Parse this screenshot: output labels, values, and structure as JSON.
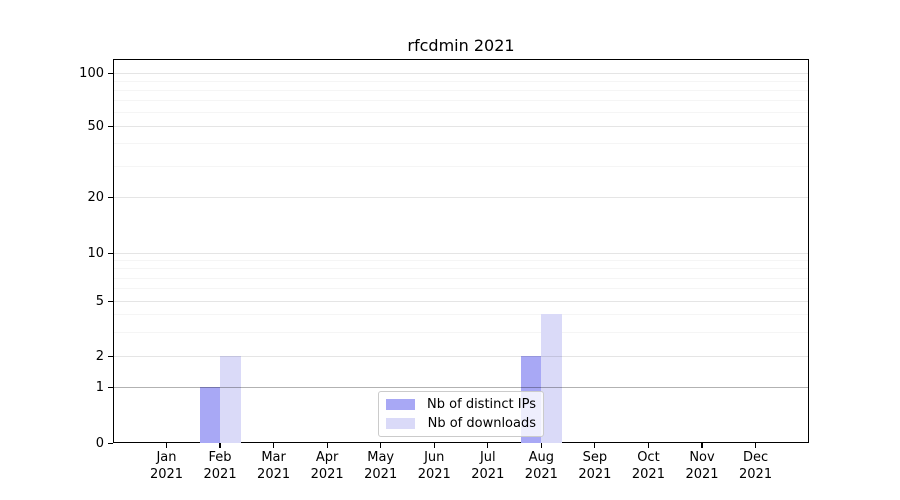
{
  "title": "rfcdmin 2021",
  "chart_data": {
    "type": "bar",
    "categories": [
      "Jan 2021",
      "Feb 2021",
      "Mar 2021",
      "Apr 2021",
      "May 2021",
      "Jun 2021",
      "Jul 2021",
      "Aug 2021",
      "Sep 2021",
      "Oct 2021",
      "Nov 2021",
      "Dec 2021"
    ],
    "series": [
      {
        "name": "Nb of distinct IPs",
        "color": "#a8a8f5",
        "values": [
          0,
          1,
          0,
          0,
          0,
          0,
          0,
          2,
          0,
          0,
          0,
          0
        ]
      },
      {
        "name": "Nb of downloads",
        "color": "#dadaf8",
        "values": [
          0,
          2,
          0,
          0,
          0,
          0,
          0,
          4,
          0,
          0,
          0,
          0
        ]
      }
    ],
    "title": "rfcdmin 2021",
    "xlabel": "",
    "ylabel": "",
    "ytick_labels": [
      "100",
      "50",
      "20",
      "10",
      "5",
      "2",
      "1",
      "0"
    ],
    "ytick_values": [
      100,
      50,
      20,
      10,
      5,
      2,
      1,
      0
    ],
    "yscale": "log-above-zero",
    "ylim": [
      0,
      120
    ],
    "grid": true,
    "legend_position": "lower center inside plot"
  }
}
